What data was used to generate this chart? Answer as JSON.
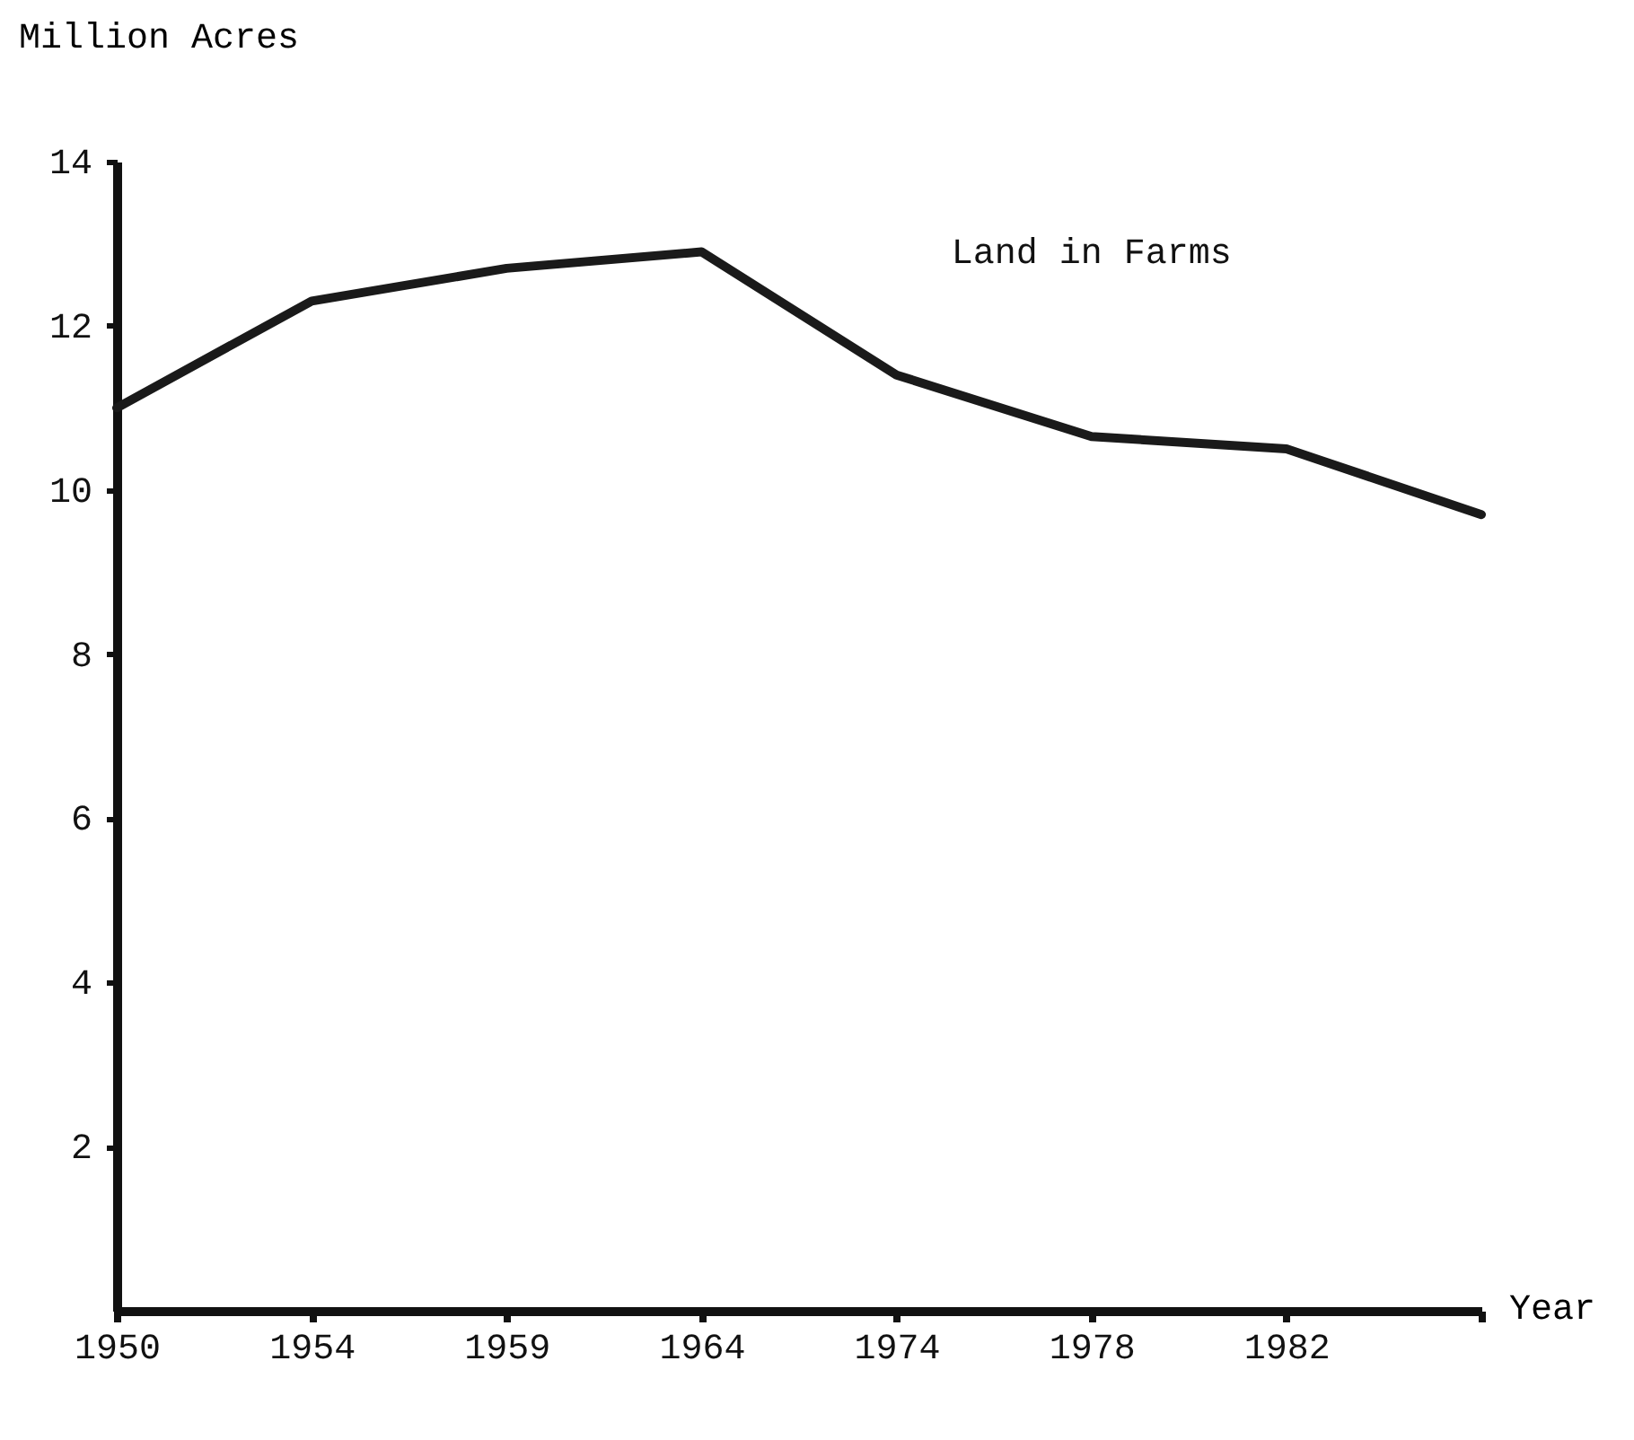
{
  "chart_data": {
    "type": "line",
    "ylabel": "Million Acres",
    "xlabel": "Year",
    "categories": [
      "1950",
      "1954",
      "1959",
      "1964",
      "1974",
      "1978",
      "1982",
      null
    ],
    "series": [
      {
        "name": "Land in Farms",
        "color": "#1a1a1a",
        "values": [
          11.0,
          12.3,
          12.7,
          12.9,
          11.4,
          10.65,
          10.5,
          9.7
        ]
      }
    ],
    "ylim": [
      0,
      14
    ],
    "yticks": [
      2,
      4,
      6,
      8,
      10,
      12,
      14
    ],
    "grid": false,
    "legend": false,
    "marker": "none",
    "line_style": "solid"
  }
}
